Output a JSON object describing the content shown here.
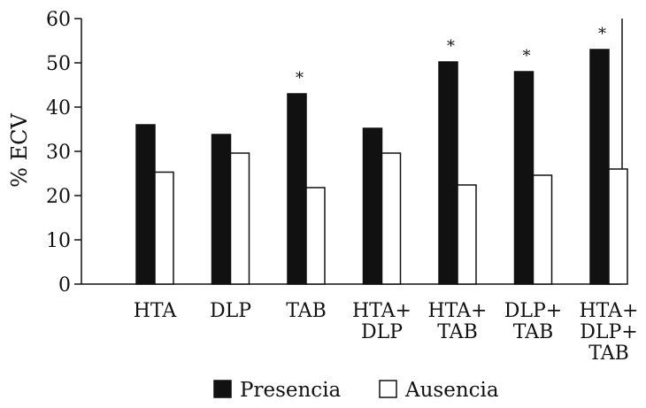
{
  "chart_data": {
    "type": "bar",
    "ylabel": "% ECV",
    "ylim": [
      0,
      60
    ],
    "yticks": [
      0,
      10,
      20,
      30,
      40,
      50,
      60
    ],
    "grid": false,
    "legend_position": "bottom",
    "categories": [
      [
        "HTA"
      ],
      [
        "DLP"
      ],
      [
        "TAB"
      ],
      [
        "HTA+",
        "DLP"
      ],
      [
        "HTA+",
        "TAB"
      ],
      [
        "DLP+",
        "TAB"
      ],
      [
        "HTA+",
        "DLP+",
        "TAB"
      ]
    ],
    "series": [
      {
        "name": "Presencia",
        "color": "#111111",
        "values": [
          36,
          33.8,
          43,
          35.2,
          50.2,
          48,
          53
        ]
      },
      {
        "name": "Ausencia",
        "color": "#ffffff",
        "values": [
          25.3,
          29.6,
          21.8,
          29.6,
          22.4,
          24.6,
          26
        ]
      }
    ],
    "annotations": [
      "",
      "",
      "*",
      "",
      "*",
      "*",
      "*"
    ]
  }
}
